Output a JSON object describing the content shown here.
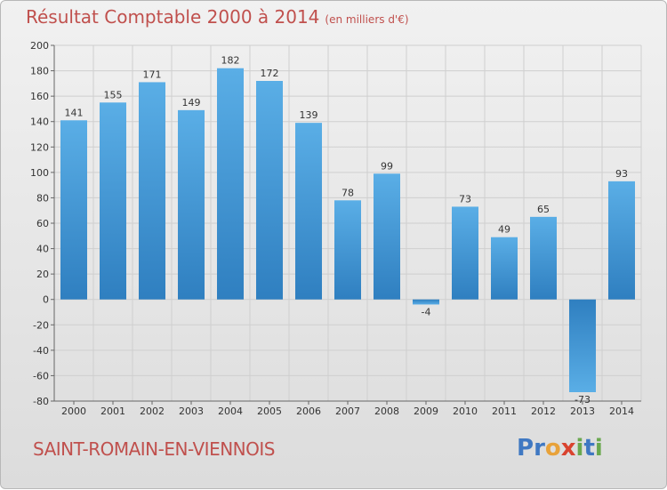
{
  "header": {
    "title": "Résultat Comptable 2000 à 2014",
    "subtitle": "(en milliers d'€)"
  },
  "footer": {
    "commune": "SAINT-ROMAIN-EN-VIENNOIS",
    "logo": {
      "text": "Proxiti",
      "letters": [
        {
          "ch": "P",
          "color": "#3f78c2"
        },
        {
          "ch": "r",
          "color": "#3f78c2"
        },
        {
          "ch": "o",
          "color": "#e8a23a"
        },
        {
          "ch": "x",
          "color": "#d9432f"
        },
        {
          "ch": "i",
          "color": "#6aa84f"
        },
        {
          "ch": "t",
          "color": "#3f78c2"
        },
        {
          "ch": "i",
          "color": "#6aa84f"
        }
      ]
    }
  },
  "colors": {
    "title": "#c0504d",
    "bar_top": "#5aaee6",
    "bar_bottom": "#2f7fc0",
    "grid": "#cfcfcf"
  },
  "chart_data": {
    "type": "bar",
    "categories": [
      "2000",
      "2001",
      "2002",
      "2003",
      "2004",
      "2005",
      "2006",
      "2007",
      "2008",
      "2009",
      "2010",
      "2011",
      "2012",
      "2013",
      "2014"
    ],
    "values": [
      141,
      155,
      171,
      149,
      182,
      172,
      139,
      78,
      99,
      -4,
      73,
      49,
      65,
      -73,
      93
    ],
    "ylim": [
      -80,
      200
    ],
    "yticks": [
      -80,
      -60,
      -40,
      -20,
      0,
      20,
      40,
      60,
      80,
      100,
      120,
      140,
      160,
      180,
      200
    ],
    "grid": true,
    "legend": "none"
  }
}
